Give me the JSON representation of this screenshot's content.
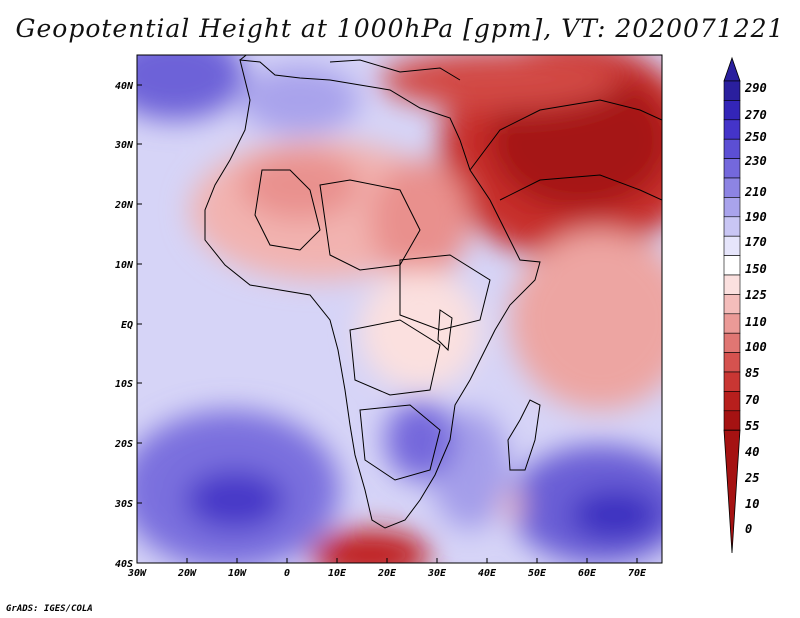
{
  "title": "Geopotential Height at 1000hPa [gpm], VT: 2020071221",
  "credit": "GrADS: IGES/COLA",
  "map": {
    "variable": "Geopotential Height",
    "level": "1000hPa",
    "units": "gpm",
    "valid_time": "2020071221",
    "lat_ticks": [
      "40N",
      "30N",
      "20N",
      "10N",
      "EQ",
      "10S",
      "20S",
      "30S",
      "40S"
    ],
    "lon_ticks": [
      "30W",
      "20W",
      "10W",
      "0",
      "10E",
      "20E",
      "30E",
      "40E",
      "50E",
      "60E",
      "70E"
    ]
  },
  "colorbar": {
    "levels": [
      "290",
      "270",
      "250",
      "230",
      "210",
      "190",
      "170",
      "150",
      "125",
      "110",
      "100",
      "85",
      "70",
      "55",
      "40",
      "25",
      "10",
      "0"
    ],
    "colors": [
      "#2a1f9e",
      "#3325b8",
      "#4434c9",
      "#5c4fd4",
      "#7468dc",
      "#8d84e3",
      "#a9a3ec",
      "#c9c6f4",
      "#e6e5fb",
      "#ffffff",
      "#fbe0df",
      "#f4bdbb",
      "#eb9a97",
      "#e07673",
      "#d5524f",
      "#c93633",
      "#b71f1d",
      "#a51212"
    ]
  }
}
